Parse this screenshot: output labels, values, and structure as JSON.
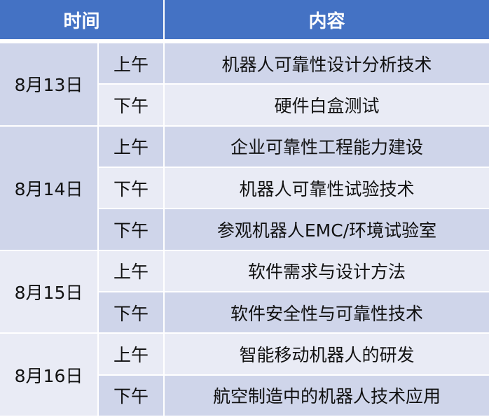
{
  "header": {
    "time": "时间",
    "content": "内容"
  },
  "colors": {
    "header": "#4472C4",
    "row_dark": "#CFD5EA",
    "row_light": "#E9EBF5"
  },
  "days": [
    {
      "date": "8月13日",
      "sessions": [
        {
          "period": "上午",
          "topic": "机器人可靠性设计分析技术"
        },
        {
          "period": "下午",
          "topic": "硬件白盒测试"
        }
      ]
    },
    {
      "date": "8月14日",
      "sessions": [
        {
          "period": "上午",
          "topic": "企业可靠性工程能力建设"
        },
        {
          "period": "下午",
          "topic": "机器人可靠性试验技术"
        },
        {
          "period": "下午",
          "topic": "参观机器人EMC/环境试验室"
        }
      ]
    },
    {
      "date": "8月15日",
      "sessions": [
        {
          "period": "上午",
          "topic": "软件需求与设计方法"
        },
        {
          "period": "下午",
          "topic": "软件安全性与可靠性技术"
        }
      ]
    },
    {
      "date": "8月16日",
      "sessions": [
        {
          "period": "上午",
          "topic": "智能移动机器人的研发"
        },
        {
          "period": "下午",
          "topic": "航空制造中的机器人技术应用"
        }
      ]
    }
  ]
}
